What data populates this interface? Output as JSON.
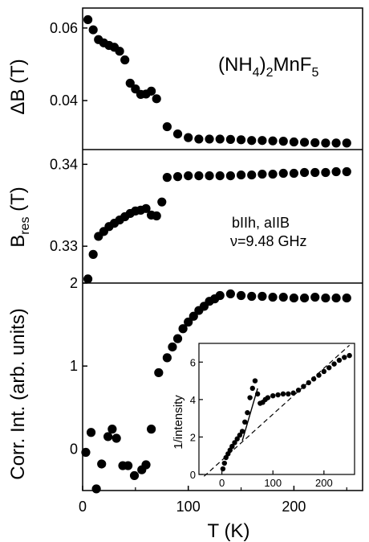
{
  "chart_data": {
    "type": "scatter",
    "x_axis": {
      "label": "T (K)",
      "range": [
        0,
        265
      ],
      "ticks": [
        0,
        100,
        200
      ],
      "tick_labels": [
        "0",
        "100",
        "200"
      ]
    },
    "panels": [
      {
        "ylabel_main": "ΔB",
        "ylabel_unit": " (T)",
        "ylim": [
          0.0265,
          0.0655
        ],
        "y_ticks": [
          0.04,
          0.06
        ],
        "y_tick_labels": [
          "0.04",
          "0.06"
        ],
        "annotation": {
          "base": "(NH",
          "sub1": "4",
          "mid": ")",
          "sub2": "2",
          "tail": "MnF",
          "sub3": "5"
        },
        "x": [
          5,
          10,
          15,
          20,
          25,
          30,
          35,
          40,
          45,
          50,
          55,
          60,
          65,
          70,
          80,
          90,
          100,
          110,
          120,
          130,
          140,
          150,
          160,
          170,
          180,
          190,
          200,
          210,
          220,
          230,
          240,
          250
        ],
        "y": [
          0.0623,
          0.0595,
          0.0568,
          0.0559,
          0.0552,
          0.0547,
          0.0536,
          0.0512,
          0.0448,
          0.0432,
          0.0417,
          0.0418,
          0.0426,
          0.0405,
          0.0328,
          0.0308,
          0.0298,
          0.0294,
          0.0294,
          0.0294,
          0.0293,
          0.0292,
          0.029,
          0.029,
          0.0289,
          0.0288,
          0.0286,
          0.0285,
          0.0284,
          0.0283,
          0.0283,
          0.0283
        ]
      },
      {
        "ylabel_main": "B",
        "ylabel_sub": "res",
        "ylabel_unit": " (T)",
        "ylim": [
          0.3255,
          0.3418
        ],
        "y_ticks": [
          0.33,
          0.34
        ],
        "y_tick_labels": [
          "0.33",
          "0.34"
        ],
        "note_lines": [
          "bIIh, aIIB",
          "ν=9.48 GHz"
        ],
        "x": [
          5,
          10,
          15,
          20,
          25,
          30,
          35,
          40,
          45,
          50,
          55,
          60,
          65,
          70,
          75,
          80,
          90,
          100,
          110,
          120,
          130,
          140,
          150,
          160,
          170,
          180,
          190,
          200,
          210,
          220,
          230,
          240,
          250
        ],
        "y": [
          0.326,
          0.329,
          0.3312,
          0.3318,
          0.3324,
          0.3328,
          0.3332,
          0.3336,
          0.334,
          0.3343,
          0.3344,
          0.3346,
          0.3338,
          0.3337,
          0.3354,
          0.3384,
          0.3385,
          0.3386,
          0.3386,
          0.3386,
          0.3386,
          0.3386,
          0.3387,
          0.3387,
          0.3388,
          0.3388,
          0.3389,
          0.3389,
          0.339,
          0.339,
          0.339,
          0.3391,
          0.3391
        ]
      },
      {
        "ylabel_main": "Corr. Int. (arb. units)",
        "ylim": [
          -0.5,
          2.0
        ],
        "y_ticks": [
          0,
          1,
          2
        ],
        "y_tick_labels": [
          "0",
          "1",
          "2"
        ],
        "x": [
          3,
          8,
          13,
          18,
          24,
          28,
          32,
          38,
          43,
          49,
          56,
          60,
          65,
          72,
          80,
          85,
          90,
          95,
          100,
          105,
          110,
          115,
          120,
          125,
          130,
          140,
          150,
          160,
          170,
          180,
          190,
          200,
          210,
          220,
          230,
          240,
          250
        ],
        "y": [
          -0.04,
          0.2,
          -0.48,
          -0.18,
          0.15,
          0.24,
          0.13,
          -0.2,
          -0.2,
          -0.32,
          -0.25,
          -0.19,
          0.24,
          0.92,
          1.1,
          1.23,
          1.33,
          1.45,
          1.53,
          1.6,
          1.67,
          1.72,
          1.78,
          1.81,
          1.85,
          1.87,
          1.85,
          1.84,
          1.84,
          1.83,
          1.83,
          1.82,
          1.82,
          1.83,
          1.82,
          1.82,
          1.82
        ]
      }
    ],
    "inset": {
      "ylabel": "1/intensity",
      "xlim": [
        -45,
        260
      ],
      "ylim": [
        0,
        7
      ],
      "x_ticks": [
        0,
        100,
        200
      ],
      "x_tick_labels": [
        "0",
        "100",
        "200"
      ],
      "y_ticks": [
        0,
        2,
        4,
        6
      ],
      "y_tick_labels": [
        "0",
        "2",
        "4",
        "6"
      ],
      "x": [
        2,
        5,
        8,
        12,
        16,
        20,
        25,
        30,
        35,
        40,
        45,
        50,
        55,
        60,
        65,
        70,
        75,
        80,
        85,
        90,
        100,
        110,
        120,
        130,
        140,
        150,
        160,
        170,
        180,
        190,
        200,
        210,
        220,
        230,
        240,
        250
      ],
      "y": [
        0.3,
        0.6,
        0.9,
        1.1,
        1.3,
        1.5,
        1.7,
        1.9,
        2.1,
        2.3,
        2.8,
        3.3,
        4.1,
        4.6,
        5.0,
        4.3,
        3.8,
        3.85,
        4.0,
        4.1,
        4.2,
        4.25,
        4.3,
        4.3,
        4.35,
        4.5,
        4.7,
        4.9,
        5.1,
        5.3,
        5.5,
        5.7,
        5.9,
        6.1,
        6.25,
        6.35
      ],
      "dashed_line": {
        "x": [
          -35,
          250
        ],
        "y": [
          -0.1,
          6.9
        ]
      },
      "solid_line": {
        "x": [
          40,
          70
        ],
        "y": [
          1.8,
          4.6
        ]
      }
    }
  }
}
